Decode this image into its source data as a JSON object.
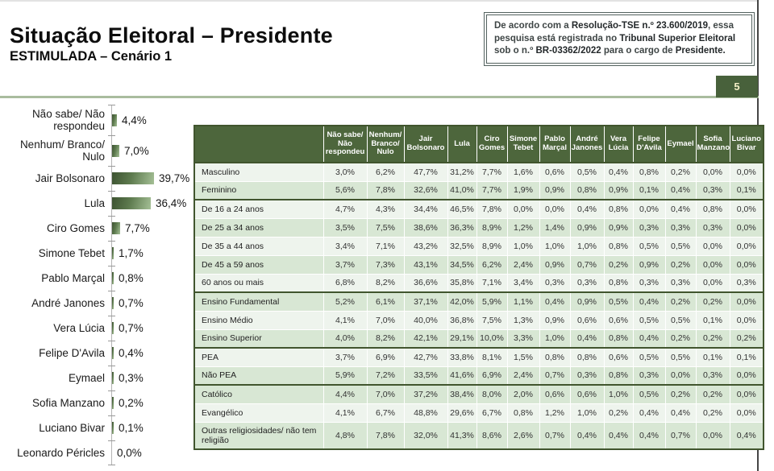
{
  "header": {
    "title": "Situação Eleitoral – Presidente",
    "subtitle": "ESTIMULADA – Cenário 1",
    "page_number": "5",
    "registration_note_segments": [
      {
        "text": "De acordo com a ",
        "strong": false
      },
      {
        "text": "Resolução-TSE n.º 23.600/2019",
        "strong": true
      },
      {
        "text": ", essa pesquisa está registrada no ",
        "strong": false
      },
      {
        "text": "Tribunal Superior Eleitoral",
        "strong": true
      },
      {
        "text": " sob o n.º ",
        "strong": false
      },
      {
        "text": "BR-03362/2022",
        "strong": true
      },
      {
        "text": " para o cargo de ",
        "strong": false
      },
      {
        "text": "Presidente.",
        "strong": true
      }
    ]
  },
  "colors": {
    "table_header_green": "#4d663c",
    "table_frame_green": "#41552e",
    "row_light": "#eef4ed",
    "row_dark": "#d8e7d4",
    "bar_dark": "#3c5230",
    "bar_light": "#a5c096",
    "sage_line": "#a9bc9e",
    "page_tab_bg": "#48613b"
  },
  "chart_data": {
    "type": "bar",
    "orientation": "horizontal",
    "title": "Situação Eleitoral – Presidente (Estimulada – Cenário 1)",
    "xlabel": "",
    "ylabel": "",
    "xlim": [
      0,
      45
    ],
    "grid": false,
    "legend": "none",
    "value_suffix": "%",
    "categories": [
      "Não sabe/ Não respondeu",
      "Nenhum/ Branco/ Nulo",
      "Jair Bolsonaro",
      "Lula",
      "Ciro Gomes",
      "Simone Tebet",
      "Pablo Marçal",
      "André Janones",
      "Vera Lúcia",
      "Felipe D'Avila",
      "Eymael",
      "Sofia Manzano",
      "Luciano Bivar",
      "Leonardo Péricles"
    ],
    "values": [
      4.4,
      7.0,
      39.7,
      36.4,
      7.7,
      1.7,
      0.8,
      0.7,
      0.7,
      0.4,
      0.3,
      0.2,
      0.1,
      0.0
    ],
    "value_labels": [
      "4,4%",
      "7,0%",
      "39,7%",
      "36,4%",
      "7,7%",
      "1,7%",
      "0,8%",
      "0,7%",
      "0,7%",
      "0,4%",
      "0,3%",
      "0,2%",
      "0,1%",
      "0,0%"
    ]
  },
  "table": {
    "columns": [
      "Não sabe/ Não respondeu",
      "Nenhum/ Branco/ Nulo",
      "Jair Bolsonaro",
      "Lula",
      "Ciro Gomes",
      "Simone Tebet",
      "Pablo Marçal",
      "André Janones",
      "Vera Lúcia",
      "Felipe D'Avila",
      "Eymael",
      "Sofia Manzano",
      "Luciano Bivar"
    ],
    "sections": [
      {
        "name": "sexo",
        "rows": [
          {
            "label": "Masculino",
            "values": [
              "3,0%",
              "6,2%",
              "47,7%",
              "31,2%",
              "7,7%",
              "1,6%",
              "0,6%",
              "0,5%",
              "0,4%",
              "0,8%",
              "0,2%",
              "0,0%",
              "0,0%"
            ]
          },
          {
            "label": "Feminino",
            "values": [
              "5,6%",
              "7,8%",
              "32,6%",
              "41,0%",
              "7,7%",
              "1,9%",
              "0,9%",
              "0,8%",
              "0,9%",
              "0,1%",
              "0,4%",
              "0,3%",
              "0,1%"
            ]
          }
        ]
      },
      {
        "name": "idade",
        "rows": [
          {
            "label": "De 16 a 24 anos",
            "values": [
              "4,7%",
              "4,3%",
              "34,4%",
              "46,5%",
              "7,8%",
              "0,0%",
              "0,0%",
              "0,4%",
              "0,8%",
              "0,0%",
              "0,4%",
              "0,8%",
              "0,0%"
            ]
          },
          {
            "label": "De 25 a 34 anos",
            "values": [
              "3,5%",
              "7,5%",
              "38,6%",
              "36,3%",
              "8,9%",
              "1,2%",
              "1,4%",
              "0,9%",
              "0,9%",
              "0,3%",
              "0,3%",
              "0,3%",
              "0,0%"
            ]
          },
          {
            "label": "De 35 a 44 anos",
            "values": [
              "3,4%",
              "7,1%",
              "43,2%",
              "32,5%",
              "8,9%",
              "1,0%",
              "1,0%",
              "1,0%",
              "0,8%",
              "0,5%",
              "0,5%",
              "0,0%",
              "0,0%"
            ]
          },
          {
            "label": "De 45 a 59 anos",
            "values": [
              "3,7%",
              "7,3%",
              "43,1%",
              "34,5%",
              "6,2%",
              "2,4%",
              "0,9%",
              "0,7%",
              "0,2%",
              "0,9%",
              "0,2%",
              "0,0%",
              "0,0%"
            ]
          },
          {
            "label": "60 anos ou mais",
            "values": [
              "6,8%",
              "8,2%",
              "36,6%",
              "35,8%",
              "7,1%",
              "3,4%",
              "0,3%",
              "0,3%",
              "0,8%",
              "0,3%",
              "0,3%",
              "0,0%",
              "0,3%"
            ]
          }
        ]
      },
      {
        "name": "escolaridade",
        "rows": [
          {
            "label": "Ensino Fundamental",
            "values": [
              "5,2%",
              "6,1%",
              "37,1%",
              "42,0%",
              "5,9%",
              "1,1%",
              "0,4%",
              "0,9%",
              "0,5%",
              "0,4%",
              "0,2%",
              "0,2%",
              "0,0%"
            ]
          },
          {
            "label": "Ensino Médio",
            "values": [
              "4,1%",
              "7,0%",
              "40,0%",
              "36,8%",
              "7,5%",
              "1,3%",
              "0,9%",
              "0,6%",
              "0,6%",
              "0,5%",
              "0,5%",
              "0,1%",
              "0,0%"
            ]
          },
          {
            "label": "Ensino Superior",
            "values": [
              "4,0%",
              "8,2%",
              "42,1%",
              "29,1%",
              "10,0%",
              "3,3%",
              "1,0%",
              "0,4%",
              "0,8%",
              "0,4%",
              "0,2%",
              "0,2%",
              "0,2%"
            ]
          }
        ]
      },
      {
        "name": "pea",
        "rows": [
          {
            "label": "PEA",
            "values": [
              "3,7%",
              "6,9%",
              "42,7%",
              "33,8%",
              "8,1%",
              "1,5%",
              "0,8%",
              "0,8%",
              "0,6%",
              "0,5%",
              "0,5%",
              "0,1%",
              "0,1%"
            ]
          },
          {
            "label": "Não PEA",
            "values": [
              "5,9%",
              "7,2%",
              "33,5%",
              "41,6%",
              "6,9%",
              "2,4%",
              "0,7%",
              "0,3%",
              "0,8%",
              "0,3%",
              "0,0%",
              "0,3%",
              "0,0%"
            ]
          }
        ]
      },
      {
        "name": "religiao",
        "rows": [
          {
            "label": "Católico",
            "values": [
              "4,4%",
              "7,0%",
              "37,2%",
              "38,4%",
              "8,0%",
              "2,0%",
              "0,6%",
              "0,6%",
              "1,0%",
              "0,5%",
              "0,2%",
              "0,2%",
              "0,0%"
            ]
          },
          {
            "label": "Evangélico",
            "values": [
              "4,1%",
              "6,7%",
              "48,8%",
              "29,6%",
              "6,7%",
              "0,8%",
              "1,2%",
              "1,0%",
              "0,2%",
              "0,4%",
              "0,4%",
              "0,2%",
              "0,0%"
            ]
          },
          {
            "label": "Outras religiosidades/ não tem religião",
            "values": [
              "4,8%",
              "7,8%",
              "32,0%",
              "41,3%",
              "8,6%",
              "2,6%",
              "0,7%",
              "0,4%",
              "0,4%",
              "0,4%",
              "0,7%",
              "0,0%",
              "0,4%"
            ]
          }
        ]
      }
    ]
  }
}
